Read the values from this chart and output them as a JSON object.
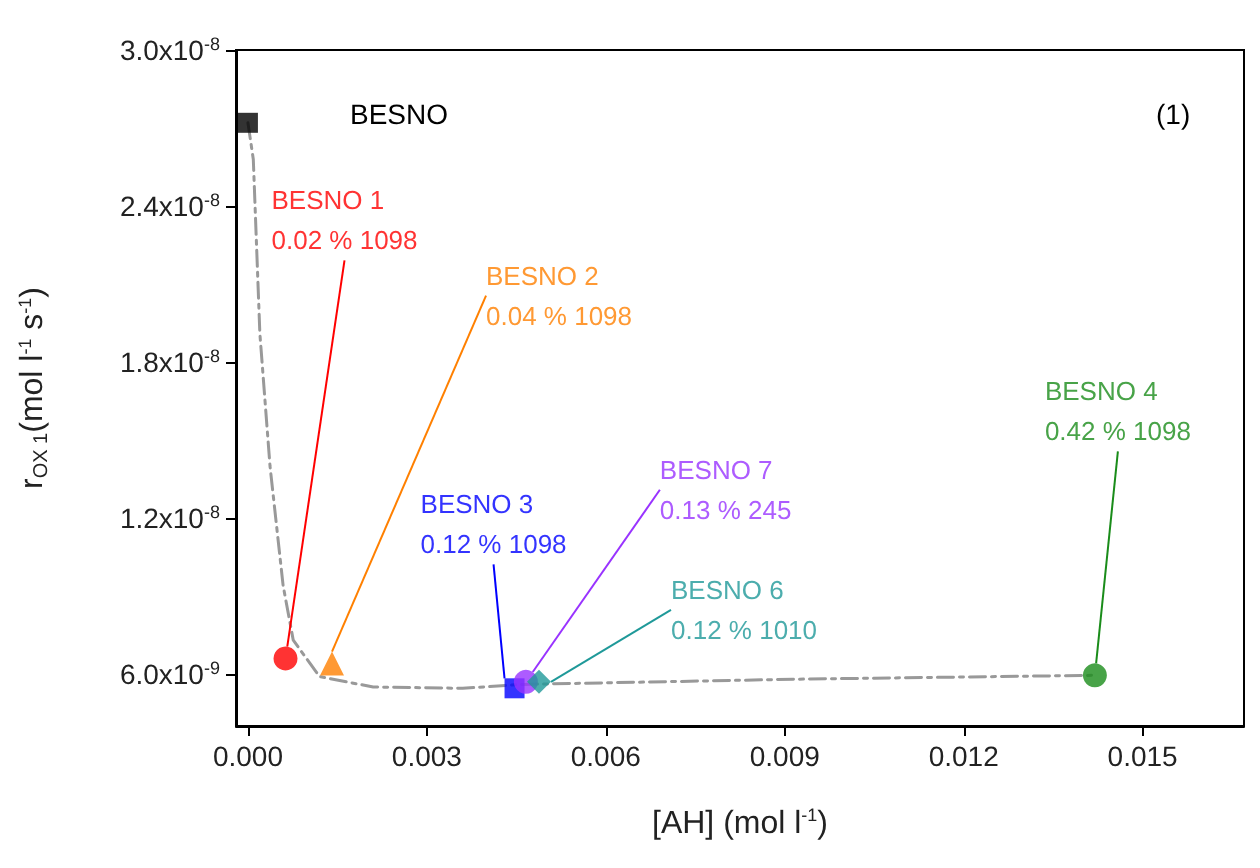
{
  "chart_data": {
    "type": "scatter",
    "xlabel": "[AH] (mol l$^{-1}$)",
    "ylabel": "r$_{OX 1}$(mol l$^{-1}$ s$^{-1}$)",
    "annotations": [
      "BESNO",
      "(1)"
    ],
    "xlim": [
      -0.0002,
      0.0167
    ],
    "xticks": [
      {
        "value": 0,
        "label": "0.000"
      },
      {
        "value": 0.003,
        "label": "0.003"
      },
      {
        "value": 0.006,
        "label": "0.006"
      },
      {
        "value": 0.009,
        "label": "0.009"
      },
      {
        "value": 0.012,
        "label": "0.012"
      },
      {
        "value": 0.015,
        "label": "0.015"
      }
    ],
    "ylim": [
      4e-09,
      3e-08
    ],
    "yticks": [
      {
        "value": 6e-09,
        "label": "6.0x10$^{-9}$"
      },
      {
        "value": 1.2e-08,
        "label": "1.2x10$^{-8}$"
      },
      {
        "value": 1.8e-08,
        "label": "1.8x10$^{-8}$"
      },
      {
        "value": 2.4e-08,
        "label": "2.4x10$^{-8}$"
      },
      {
        "value": 3e-08,
        "label": "3.0x10$^{-8}$"
      }
    ],
    "grid": false,
    "legend": false,
    "series": [
      {
        "type": "line",
        "color": "#999999",
        "line_style": "dashed",
        "marker": "none",
        "x": [
          0,
          9e-05,
          0.0002,
          0.00037,
          0.00059,
          0.00076,
          0.0012,
          0.0021,
          0.0036,
          0.0046,
          0.0092,
          0.0142
        ],
        "values": [
          2.72e-08,
          2.58e-08,
          1.91e-08,
          1.4e-08,
          9.4e-09,
          7.3e-09,
          5.9e-09,
          5.5e-09,
          5.45e-09,
          5.6e-09,
          5.8e-09,
          5.95e-09
        ]
      },
      {
        "color": "#000000",
        "marker": "square",
        "x": [
          0
        ],
        "values": [
          2.72e-08
        ]
      },
      {
        "name": "BESNO 1\n0.02 % 1098",
        "color": "#ff0000",
        "marker": "circle",
        "x": [
          0.00063
        ],
        "values": [
          6.6e-09
        ]
      },
      {
        "name": "BESNO 2\n0.04 % 1098",
        "color": "#ff8000",
        "marker": "triangle",
        "x": [
          0.00141
        ],
        "values": [
          6.4e-09
        ]
      },
      {
        "name": "BESNO 3\n0.12 % 1098",
        "color": "#0000ff",
        "marker": "square",
        "x": [
          0.00447
        ],
        "values": [
          5.45e-09
        ]
      },
      {
        "name": "BESNO 7\n0.13 % 245",
        "color": "#9933ff",
        "marker": "circle",
        "x": [
          0.00466
        ],
        "values": [
          5.7e-09
        ]
      },
      {
        "name": "BESNO 6\n0.12 % 1010",
        "color": "#1f9999",
        "marker": "diamond",
        "x": [
          0.00488
        ],
        "values": [
          5.7e-09
        ]
      },
      {
        "name": "BESNO 4\n0.42 % 1098",
        "color": "#1a8c1a",
        "marker": "circle",
        "x": [
          0.0142
        ],
        "values": [
          5.95e-09
        ]
      }
    ]
  }
}
